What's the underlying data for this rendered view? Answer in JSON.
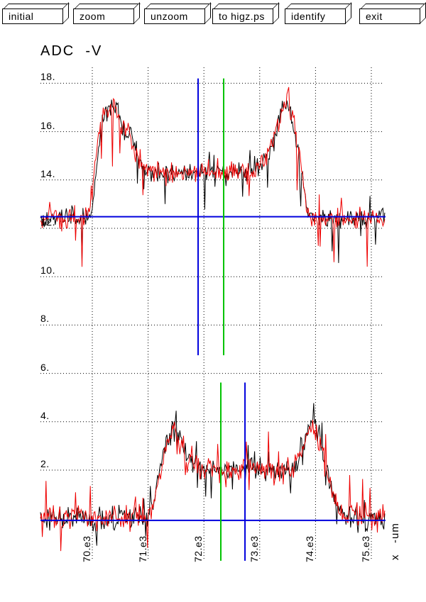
{
  "toolbar": {
    "buttons": [
      {
        "label": "initial"
      },
      {
        "label": "zoom"
      },
      {
        "label": "unzoom"
      },
      {
        "label": "to higz.ps"
      },
      {
        "label": "identify"
      },
      {
        "label": "exit"
      }
    ]
  },
  "plot": {
    "title": "ADC  -V",
    "x_axis_label": "x   -um"
  },
  "chart_data": {
    "type": "line",
    "title": "ADC  -V",
    "xlabel": "x -um",
    "ylabel": "ADC -V",
    "grid": "dotted",
    "xlim": [
      69071,
      75254
    ],
    "ylim": [
      -1.8,
      18.7
    ],
    "x_ticks": [
      {
        "label": "70.e3",
        "value": 70000
      },
      {
        "label": "71.e3",
        "value": 71000
      },
      {
        "label": "72.e3",
        "value": 72000
      },
      {
        "label": "73.e3",
        "value": 73000
      },
      {
        "label": "74.e3",
        "value": 74000
      },
      {
        "label": "75.e3",
        "value": 75000
      }
    ],
    "y_ticks": [
      {
        "label": "18.",
        "value": 18
      },
      {
        "label": "16.",
        "value": 16
      },
      {
        "label": "14.",
        "value": 14
      },
      {
        "label": "12.",
        "value": 12
      },
      {
        "label": "10.",
        "value": 10
      },
      {
        "label": "8.",
        "value": 8
      },
      {
        "label": "6.",
        "value": 6
      },
      {
        "label": "4.",
        "value": 4
      },
      {
        "label": "2.",
        "value": 2
      }
    ],
    "series": [
      {
        "name": "upper-trace-black",
        "color": "#000000",
        "clamp": [
          10.2,
          18.35
        ],
        "noise": {
          "sigma": 0.38,
          "p_down": 0.05,
          "amp_down": 2.2,
          "p_up": 0.04,
          "amp_up": 1.0,
          "seed": 101
        },
        "envelope": [
          [
            69071,
            12.45
          ],
          [
            69940,
            12.45
          ],
          [
            70020,
            13.2
          ],
          [
            70150,
            16.2
          ],
          [
            70300,
            16.9
          ],
          [
            70420,
            17.2
          ],
          [
            70480,
            16.8
          ],
          [
            70560,
            16.1
          ],
          [
            70700,
            15.9
          ],
          [
            70800,
            15.0
          ],
          [
            70950,
            14.45
          ],
          [
            71150,
            14.3
          ],
          [
            72900,
            14.3
          ],
          [
            73100,
            14.7
          ],
          [
            73290,
            15.9
          ],
          [
            73400,
            17.0
          ],
          [
            73500,
            17.2
          ],
          [
            73580,
            16.7
          ],
          [
            73680,
            15.3
          ],
          [
            73790,
            13.6
          ],
          [
            73870,
            12.45
          ],
          [
            75254,
            12.45
          ]
        ]
      },
      {
        "name": "upper-trace-red",
        "color": "#ee0000",
        "clamp": [
          10.2,
          18.0
        ],
        "noise": {
          "sigma": 0.4,
          "p_down": 0.05,
          "amp_down": 2.4,
          "p_up": 0.04,
          "amp_up": 1.0,
          "seed": 202
        },
        "envelope": [
          [
            69071,
            12.4
          ],
          [
            69910,
            12.4
          ],
          [
            70000,
            13.5
          ],
          [
            70130,
            16.4
          ],
          [
            70280,
            17.0
          ],
          [
            70400,
            17.1
          ],
          [
            70500,
            16.4
          ],
          [
            70650,
            16.0
          ],
          [
            70780,
            15.1
          ],
          [
            70950,
            14.4
          ],
          [
            71200,
            14.35
          ],
          [
            72900,
            14.35
          ],
          [
            73120,
            14.9
          ],
          [
            73300,
            16.1
          ],
          [
            73420,
            17.1
          ],
          [
            73520,
            17.3
          ],
          [
            73620,
            16.5
          ],
          [
            73720,
            15.0
          ],
          [
            73820,
            13.2
          ],
          [
            73900,
            12.4
          ],
          [
            75254,
            12.4
          ]
        ]
      },
      {
        "name": "lower-trace-black",
        "color": "#000000",
        "clamp": [
          -1.65,
          4.8
        ],
        "noise": {
          "sigma": 0.42,
          "p_down": 0.06,
          "amp_down": 1.3,
          "p_up": 0.05,
          "amp_up": 1.0,
          "seed": 303
        },
        "envelope": [
          [
            69071,
            0.0
          ],
          [
            70980,
            0.0
          ],
          [
            71120,
            1.0
          ],
          [
            71300,
            2.9
          ],
          [
            71430,
            4.0
          ],
          [
            71490,
            4.25
          ],
          [
            71560,
            3.4
          ],
          [
            71700,
            2.5
          ],
          [
            71950,
            2.05
          ],
          [
            73600,
            1.95
          ],
          [
            73760,
            2.9
          ],
          [
            73900,
            3.9
          ],
          [
            73980,
            4.15
          ],
          [
            74100,
            3.2
          ],
          [
            74250,
            1.5
          ],
          [
            74420,
            0.15
          ],
          [
            75254,
            0.0
          ]
        ]
      },
      {
        "name": "lower-trace-red",
        "color": "#ee0000",
        "clamp": [
          -1.5,
          4.6
        ],
        "noise": {
          "sigma": 0.45,
          "p_down": 0.05,
          "amp_down": 1.0,
          "p_up": 0.07,
          "amp_up": 1.5,
          "seed": 404
        },
        "envelope": [
          [
            69071,
            0.05
          ],
          [
            71000,
            0.05
          ],
          [
            71160,
            1.3
          ],
          [
            71330,
            3.0
          ],
          [
            71470,
            3.9
          ],
          [
            71560,
            3.2
          ],
          [
            71720,
            2.3
          ],
          [
            72000,
            2.0
          ],
          [
            73600,
            2.0
          ],
          [
            73800,
            3.1
          ],
          [
            73950,
            3.9
          ],
          [
            74060,
            3.3
          ],
          [
            74220,
            1.7
          ],
          [
            74470,
            0.2
          ],
          [
            75254,
            0.05
          ]
        ]
      }
    ],
    "markers": [
      {
        "name": "upper-baseline",
        "type": "hline",
        "color": "#0000dd",
        "v": 12.48,
        "t_span": [
          69071,
          75254
        ]
      },
      {
        "name": "lower-baseline",
        "type": "hline",
        "color": "#0000dd",
        "v": -0.08,
        "t_span": [
          69071,
          75254
        ]
      },
      {
        "name": "upper-cursor-blue",
        "type": "vline",
        "color": "#0000dd",
        "t": 71896,
        "v_span": [
          6.75,
          18.2
        ]
      },
      {
        "name": "upper-cursor-green",
        "type": "vline",
        "color": "#00c300",
        "t": 72354,
        "v_span": [
          6.75,
          18.2
        ]
      },
      {
        "name": "lower-cursor-green",
        "type": "vline",
        "color": "#00c300",
        "t": 72303,
        "v_span": [
          -1.75,
          5.62
        ]
      },
      {
        "name": "lower-cursor-blue",
        "type": "vline",
        "color": "#0000dd",
        "t": 72736,
        "v_span": [
          -1.75,
          5.62
        ]
      }
    ]
  }
}
